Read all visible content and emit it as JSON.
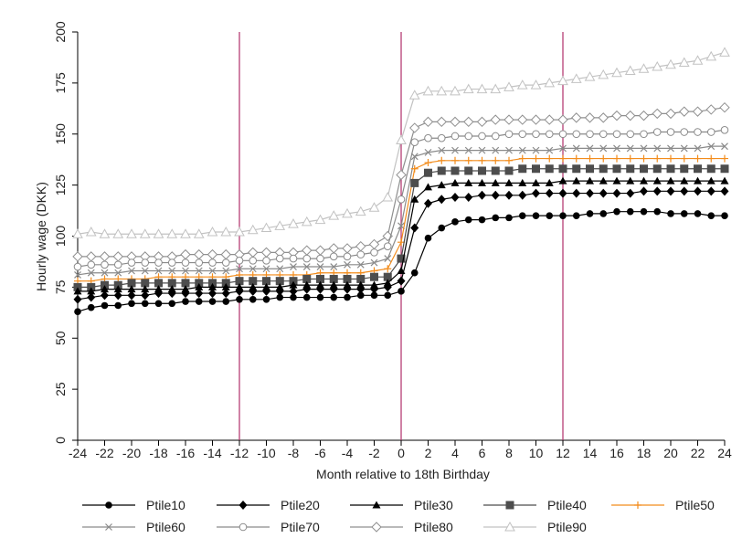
{
  "chart_data": {
    "type": "line",
    "xlabel": "Month relative to 18th Birthday",
    "ylabel": "Hourly wage (DKK)",
    "xlim": [
      -24,
      24
    ],
    "ylim": [
      0,
      200
    ],
    "xticks": [
      -24,
      -22,
      -20,
      -18,
      -16,
      -14,
      -12,
      -10,
      -8,
      -6,
      -4,
      -2,
      0,
      2,
      4,
      6,
      8,
      10,
      12,
      14,
      16,
      18,
      20,
      22,
      24
    ],
    "yticks": [
      0,
      25,
      50,
      75,
      100,
      125,
      150,
      175,
      200
    ],
    "vertical_lines": [
      -12,
      0,
      12
    ],
    "vertical_line_color": "#b0306a",
    "grid": false,
    "legend_position": "bottom",
    "x": [
      -24,
      -23,
      -22,
      -21,
      -20,
      -19,
      -18,
      -17,
      -16,
      -15,
      -14,
      -13,
      -12,
      -11,
      -10,
      -9,
      -8,
      -7,
      -6,
      -5,
      -4,
      -3,
      -2,
      -1,
      0,
      1,
      2,
      3,
      4,
      5,
      6,
      7,
      8,
      9,
      10,
      11,
      12,
      13,
      14,
      15,
      16,
      17,
      18,
      19,
      20,
      21,
      22,
      23,
      24
    ],
    "series": [
      {
        "name": "Ptile10",
        "color": "#000000",
        "marker": "circle",
        "values": [
          63,
          65,
          66,
          66,
          67,
          67,
          67,
          67,
          68,
          68,
          68,
          68,
          69,
          69,
          69,
          70,
          70,
          70,
          70,
          70,
          70,
          71,
          71,
          71,
          73,
          82,
          99,
          104,
          107,
          108,
          108,
          109,
          109,
          110,
          110,
          110,
          110,
          110,
          111,
          111,
          112,
          112,
          112,
          112,
          111,
          111,
          111,
          110,
          110
        ]
      },
      {
        "name": "Ptile20",
        "color": "#000000",
        "marker": "diamond",
        "values": [
          69,
          70,
          71,
          71,
          71,
          71,
          72,
          72,
          72,
          72,
          72,
          72,
          73,
          73,
          73,
          73,
          73,
          74,
          74,
          74,
          74,
          74,
          74,
          75,
          78,
          104,
          116,
          118,
          119,
          119,
          120,
          120,
          120,
          120,
          121,
          121,
          121,
          121,
          121,
          121,
          121,
          121,
          122,
          122,
          122,
          122,
          122,
          122,
          122
        ]
      },
      {
        "name": "Ptile30",
        "color": "#000000",
        "marker": "triangle",
        "values": [
          73,
          73,
          74,
          74,
          74,
          74,
          74,
          74,
          74,
          75,
          75,
          75,
          75,
          75,
          75,
          75,
          76,
          76,
          76,
          76,
          76,
          76,
          76,
          77,
          83,
          118,
          124,
          125,
          126,
          126,
          126,
          126,
          126,
          126,
          126,
          126,
          127,
          127,
          127,
          127,
          127,
          127,
          127,
          127,
          127,
          127,
          127,
          127,
          127
        ]
      },
      {
        "name": "Ptile40",
        "color": "#4d4d4d",
        "marker": "square",
        "values": [
          75,
          75,
          76,
          76,
          77,
          77,
          77,
          77,
          77,
          77,
          77,
          77,
          78,
          78,
          78,
          78,
          78,
          79,
          79,
          79,
          79,
          79,
          80,
          80,
          89,
          126,
          131,
          132,
          132,
          132,
          132,
          132,
          132,
          133,
          133,
          133,
          133,
          133,
          133,
          133,
          133,
          133,
          133,
          133,
          133,
          133,
          133,
          133,
          133
        ]
      },
      {
        "name": "Ptile50",
        "color": "#f28c1c",
        "marker": "plus",
        "values": [
          78,
          78,
          79,
          79,
          79,
          79,
          80,
          80,
          80,
          80,
          80,
          80,
          81,
          81,
          81,
          81,
          81,
          81,
          82,
          82,
          82,
          82,
          83,
          84,
          97,
          133,
          136,
          137,
          137,
          137,
          137,
          137,
          137,
          138,
          138,
          138,
          138,
          138,
          138,
          138,
          138,
          138,
          138,
          138,
          138,
          138,
          138,
          138,
          138
        ]
      },
      {
        "name": "Ptile60",
        "color": "#8a8a8a",
        "marker": "x",
        "values": [
          81,
          82,
          82,
          82,
          83,
          83,
          83,
          83,
          83,
          83,
          83,
          83,
          84,
          84,
          84,
          84,
          85,
          85,
          85,
          85,
          86,
          86,
          87,
          89,
          105,
          139,
          141,
          142,
          142,
          142,
          142,
          142,
          142,
          142,
          142,
          142,
          143,
          143,
          143,
          143,
          143,
          143,
          143,
          143,
          143,
          143,
          143,
          144,
          144
        ]
      },
      {
        "name": "Ptile70",
        "color": "#8a8a8a",
        "marker": "circle-open",
        "values": [
          85,
          86,
          86,
          86,
          87,
          87,
          87,
          87,
          87,
          87,
          87,
          87,
          88,
          88,
          88,
          89,
          89,
          89,
          89,
          90,
          90,
          91,
          92,
          95,
          118,
          146,
          148,
          148,
          149,
          149,
          149,
          149,
          150,
          150,
          150,
          150,
          150,
          150,
          150,
          150,
          150,
          150,
          150,
          151,
          151,
          151,
          151,
          151,
          152
        ]
      },
      {
        "name": "Ptile80",
        "color": "#8f8f8f",
        "marker": "diamond-open",
        "values": [
          90,
          90,
          90,
          90,
          90,
          90,
          90,
          90,
          91,
          91,
          91,
          91,
          91,
          92,
          92,
          92,
          92,
          93,
          93,
          94,
          94,
          95,
          96,
          100,
          130,
          153,
          156,
          156,
          156,
          156,
          156,
          157,
          157,
          157,
          157,
          157,
          157,
          158,
          158,
          158,
          159,
          159,
          159,
          160,
          160,
          161,
          161,
          162,
          163
        ]
      },
      {
        "name": "Ptile90",
        "color": "#c2c2c2",
        "marker": "triangle-open",
        "values": [
          101,
          102,
          101,
          101,
          101,
          101,
          101,
          101,
          101,
          101,
          102,
          102,
          102,
          103,
          104,
          105,
          106,
          107,
          108,
          110,
          111,
          112,
          114,
          119,
          147,
          169,
          171,
          171,
          171,
          172,
          172,
          172,
          173,
          174,
          174,
          175,
          176,
          177,
          178,
          179,
          180,
          181,
          182,
          183,
          184,
          185,
          186,
          188,
          190
        ]
      }
    ]
  }
}
